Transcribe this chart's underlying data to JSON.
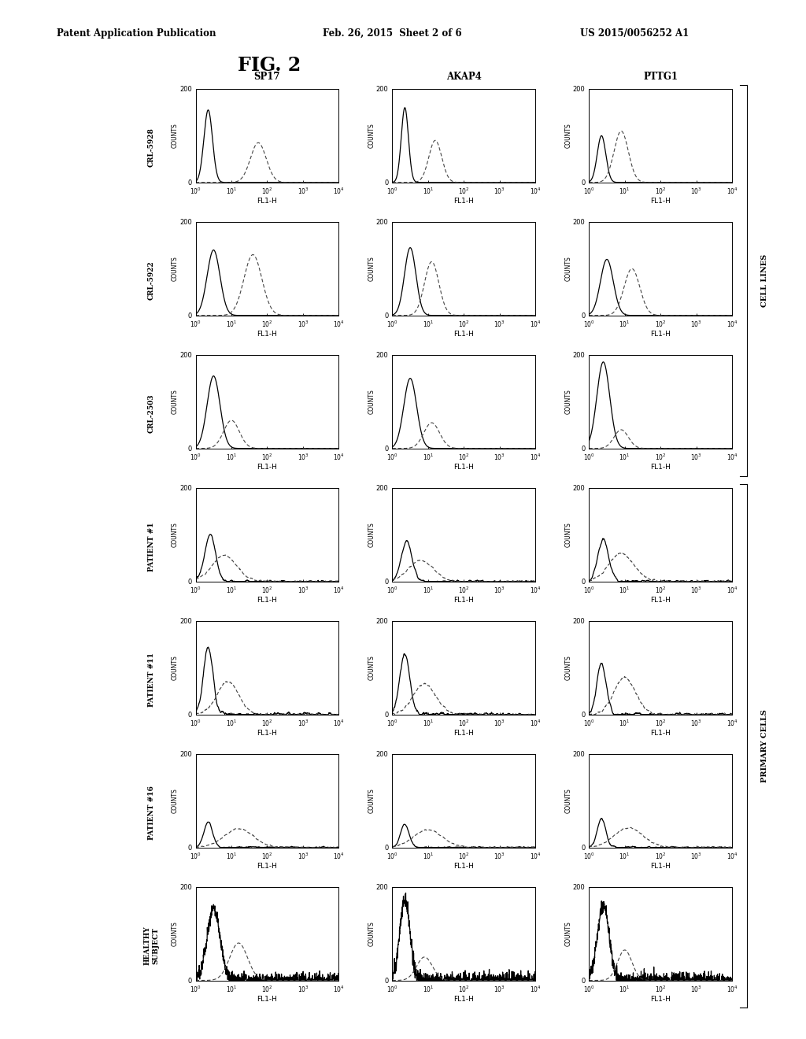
{
  "title": "FIG. 2",
  "header_left": "Patent Application Publication",
  "header_center": "Feb. 26, 2015  Sheet 2 of 6",
  "header_right": "US 2015/0056252 A1",
  "col_titles": [
    "SP17",
    "AKAP4",
    "PTTG1"
  ],
  "row_labels": [
    "CRL-5928",
    "CRL-5922",
    "CRL-2503",
    "PATIENT #1",
    "PATIENT #11",
    "PATIENT #16",
    "HEALTHY\nSUBJECT"
  ],
  "cell_lines_label": "CELL LINES",
  "primary_cells_label": "PRIMARY CELLS",
  "xlabel": "FL1-H",
  "ylabel": "COUNTS",
  "background": "#ffffff",
  "curves": {
    "0_0": {
      "solid": [
        0.35,
        0.12,
        155
      ],
      "dashed": [
        1.75,
        0.22,
        85
      ]
    },
    "0_1": {
      "solid": [
        0.35,
        0.1,
        160
      ],
      "dashed": [
        1.2,
        0.18,
        90
      ]
    },
    "0_2": {
      "solid": [
        0.35,
        0.12,
        100
      ],
      "dashed": [
        0.9,
        0.2,
        110
      ]
    },
    "1_0": {
      "solid": [
        0.5,
        0.18,
        140
      ],
      "dashed": [
        1.6,
        0.25,
        130
      ]
    },
    "1_1": {
      "solid": [
        0.5,
        0.16,
        145
      ],
      "dashed": [
        1.1,
        0.2,
        115
      ]
    },
    "1_2": {
      "solid": [
        0.5,
        0.18,
        120
      ],
      "dashed": [
        1.2,
        0.22,
        100
      ]
    },
    "2_0": {
      "solid": [
        0.5,
        0.18,
        155
      ],
      "dashed": [
        1.0,
        0.22,
        60
      ]
    },
    "2_1": {
      "solid": [
        0.5,
        0.18,
        150
      ],
      "dashed": [
        1.1,
        0.22,
        55
      ]
    },
    "2_2": {
      "solid": [
        0.4,
        0.18,
        185
      ],
      "dashed": [
        0.9,
        0.2,
        40
      ]
    },
    "3_0": {
      "solid": [
        0.4,
        0.15,
        100
      ],
      "dashed": [
        0.8,
        0.35,
        55
      ]
    },
    "3_1": {
      "solid": [
        0.4,
        0.15,
        85
      ],
      "dashed": [
        0.8,
        0.35,
        45
      ]
    },
    "3_2": {
      "solid": [
        0.4,
        0.15,
        90
      ],
      "dashed": [
        0.9,
        0.35,
        60
      ]
    },
    "4_0": {
      "solid": [
        0.35,
        0.13,
        145
      ],
      "dashed": [
        0.9,
        0.3,
        70
      ]
    },
    "4_1": {
      "solid": [
        0.35,
        0.14,
        130
      ],
      "dashed": [
        0.9,
        0.32,
        65
      ]
    },
    "4_2": {
      "solid": [
        0.35,
        0.13,
        110
      ],
      "dashed": [
        1.0,
        0.3,
        80
      ]
    },
    "5_0": {
      "solid": [
        0.35,
        0.12,
        55
      ],
      "dashed": [
        1.2,
        0.4,
        40
      ]
    },
    "5_1": {
      "solid": [
        0.35,
        0.12,
        50
      ],
      "dashed": [
        1.0,
        0.4,
        38
      ]
    },
    "5_2": {
      "solid": [
        0.35,
        0.12,
        60
      ],
      "dashed": [
        1.1,
        0.4,
        42
      ]
    },
    "6_0": {
      "solid": [
        0.5,
        0.18,
        155
      ],
      "dashed": [
        1.2,
        0.25,
        80
      ]
    },
    "6_1": {
      "solid": [
        0.35,
        0.14,
        175
      ],
      "dashed": [
        0.9,
        0.22,
        50
      ]
    },
    "6_2": {
      "solid": [
        0.4,
        0.16,
        160
      ],
      "dashed": [
        1.0,
        0.2,
        65
      ]
    }
  }
}
